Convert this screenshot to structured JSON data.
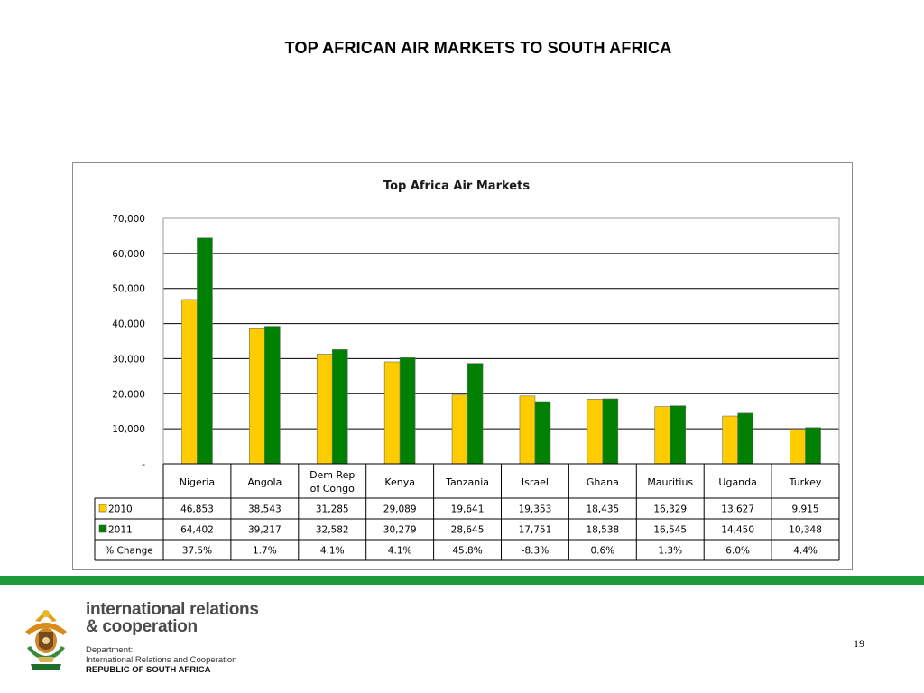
{
  "slide": {
    "title": "TOP AFRICAN AIR MARKETS TO SOUTH AFRICA",
    "page_number": "19"
  },
  "footer": {
    "brand_line1": "international relations",
    "brand_line2": "& cooperation",
    "dept_label": "Department:",
    "dept_name": "International Relations and Cooperation",
    "dept_country": "REPUBLIC OF SOUTH AFRICA",
    "accent_color": "#1f9a3a"
  },
  "chart_data": {
    "type": "bar",
    "title": "Top Africa Air Markets",
    "categories": [
      "Nigeria",
      "Angola",
      "Dem Rep of Congo",
      "Kenya",
      "Tanzania",
      "Israel",
      "Ghana",
      "Mauritius",
      "Uganda",
      "Turkey"
    ],
    "series": [
      {
        "name": "2010",
        "color": "#ffcc00",
        "values": [
          46853,
          38543,
          31285,
          29089,
          19641,
          19353,
          18435,
          16329,
          13627,
          9915
        ],
        "labels": [
          "46,853",
          "38,543",
          "31,285",
          "29,089",
          "19,641",
          "19,353",
          "18,435",
          "16,329",
          "13,627",
          "9,915"
        ]
      },
      {
        "name": "2011",
        "color": "#008000",
        "values": [
          64402,
          39217,
          32582,
          30279,
          28645,
          17751,
          18538,
          16545,
          14450,
          10348
        ],
        "labels": [
          "64,402",
          "39,217",
          "32,582",
          "30,279",
          "28,645",
          "17,751",
          "18,538",
          "16,545",
          "14,450",
          "10,348"
        ]
      }
    ],
    "change_row": {
      "label": "% Change",
      "values": [
        "37.5%",
        "1.7%",
        "4.1%",
        "4.1%",
        "45.8%",
        "-8.3%",
        "0.6%",
        "1.3%",
        "6.0%",
        "4.4%"
      ]
    },
    "y_ticks": [
      "-",
      "10,000",
      "20,000",
      "30,000",
      "40,000",
      "50,000",
      "60,000",
      "70,000"
    ],
    "ylim": [
      0,
      70000
    ],
    "grid": true,
    "legend": "data-table"
  }
}
